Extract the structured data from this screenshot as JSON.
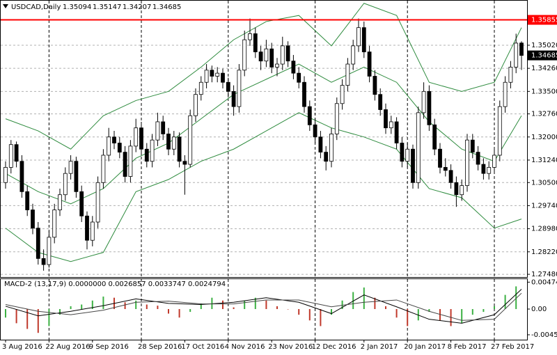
{
  "chart_data": {
    "type": "candlestick",
    "title": "USDCAD,Daily",
    "macd_title": "MACD-2 (13,17,9) 0.0000000 0.0026857 0.0033747 0.0024794",
    "categories": [
      "3 Aug 2016",
      null,
      null,
      null,
      null,
      null,
      null,
      null,
      "22 Aug 2016",
      null,
      null,
      null,
      null,
      null,
      null,
      null,
      "9 Sep 2016",
      null,
      null,
      null,
      null,
      null,
      null,
      null,
      null,
      "28 Sep 2016",
      null,
      null,
      null,
      null,
      null,
      null,
      null,
      "17 Oct 2016",
      null,
      null,
      null,
      null,
      null,
      null,
      null,
      "4 Nov 2016",
      null,
      null,
      null,
      null,
      null,
      null,
      null,
      "23 Nov 2016",
      null,
      null,
      null,
      null,
      null,
      null,
      null,
      "12 Dec 2016",
      null,
      null,
      null,
      null,
      null,
      null,
      null,
      null,
      "2 Jan 2017",
      null,
      null,
      null,
      null,
      null,
      null,
      null,
      "20 Jan 2017",
      null,
      null,
      null,
      null,
      null,
      null,
      null,
      "8 Feb 2017",
      null,
      null,
      null,
      null,
      null,
      null,
      null,
      "27 Feb 2017",
      null,
      null,
      null,
      null,
      null
    ],
    "open": [
      1.305,
      1.31,
      1.3175,
      1.312,
      1.302,
      1.296,
      1.29,
      1.28,
      1.278,
      1.287,
      1.296,
      1.301,
      1.308,
      1.312,
      1.302,
      1.294,
      1.286,
      1.292,
      1.305,
      1.314,
      1.32,
      1.318,
      1.315,
      1.307,
      1.317,
      1.323,
      1.316,
      1.312,
      1.319,
      1.325,
      1.321,
      1.316,
      1.32,
      1.312,
      1.311,
      1.327,
      1.334,
      1.338,
      1.342,
      1.34,
      1.341,
      1.338,
      1.335,
      1.33,
      1.342,
      1.352,
      1.354,
      1.348,
      1.345,
      1.349,
      1.343,
      1.344,
      1.35,
      1.345,
      1.341,
      1.338,
      1.33,
      1.324,
      1.32,
      1.315,
      1.312,
      1.321,
      1.331,
      1.337,
      1.344,
      1.35,
      1.356,
      1.348,
      1.34,
      1.334,
      1.329,
      1.323,
      1.325,
      1.318,
      1.312,
      1.316,
      1.305,
      1.328,
      1.335,
      1.324,
      1.316,
      1.31,
      1.309,
      1.305,
      1.301,
      1.304,
      1.319,
      1.315,
      1.311,
      1.308,
      1.31,
      1.314,
      1.33,
      1.338,
      1.343,
      1.35094
    ],
    "high": [
      1.312,
      1.319,
      1.3185,
      1.314,
      1.304,
      1.298,
      1.292,
      1.283,
      1.289,
      1.298,
      1.303,
      1.31,
      1.314,
      1.3135,
      1.304,
      1.2955,
      1.294,
      1.307,
      1.316,
      1.323,
      1.322,
      1.32,
      1.317,
      1.319,
      1.326,
      1.325,
      1.318,
      1.321,
      1.328,
      1.327,
      1.323,
      1.322,
      1.3215,
      1.314,
      1.329,
      1.336,
      1.34,
      1.344,
      1.3435,
      1.343,
      1.3425,
      1.3395,
      1.337,
      1.344,
      1.355,
      1.359,
      1.356,
      1.35,
      1.352,
      1.351,
      1.346,
      1.353,
      1.3515,
      1.347,
      1.343,
      1.34,
      1.332,
      1.326,
      1.322,
      1.317,
      1.323,
      1.333,
      1.339,
      1.346,
      1.352,
      1.359,
      1.358,
      1.35,
      1.342,
      1.336,
      1.331,
      1.327,
      1.3265,
      1.32,
      1.318,
      1.3175,
      1.33,
      1.338,
      1.337,
      1.326,
      1.318,
      1.313,
      1.311,
      1.307,
      1.306,
      1.321,
      1.321,
      1.317,
      1.313,
      1.312,
      1.316,
      1.332,
      1.34,
      1.345,
      1.354,
      1.35147
    ],
    "low": [
      1.303,
      1.308,
      1.31,
      1.3,
      1.294,
      1.288,
      1.278,
      1.276,
      1.277,
      1.285,
      1.294,
      1.299,
      1.306,
      1.3,
      1.292,
      1.283,
      1.284,
      1.29,
      1.303,
      1.312,
      1.316,
      1.313,
      1.305,
      1.305,
      1.315,
      1.314,
      1.31,
      1.31,
      1.317,
      1.319,
      1.314,
      1.314,
      1.31,
      1.301,
      1.31,
      1.325,
      1.332,
      1.336,
      1.338,
      1.338,
      1.336,
      1.333,
      1.327,
      1.328,
      1.34,
      1.35,
      1.346,
      1.342,
      1.343,
      1.341,
      1.34,
      1.342,
      1.343,
      1.339,
      1.336,
      1.328,
      1.322,
      1.318,
      1.313,
      1.309,
      1.31,
      1.319,
      1.329,
      1.335,
      1.342,
      1.348,
      1.346,
      1.338,
      1.332,
      1.327,
      1.321,
      1.321,
      1.316,
      1.31,
      1.31,
      1.303,
      1.303,
      1.326,
      1.322,
      1.314,
      1.308,
      1.307,
      1.303,
      1.297,
      1.299,
      1.302,
      1.313,
      1.309,
      1.306,
      1.306,
      1.308,
      1.312,
      1.328,
      1.336,
      1.341,
      1.34207
    ],
    "close": [
      1.31,
      1.3175,
      1.312,
      1.302,
      1.296,
      1.29,
      1.28,
      1.278,
      1.287,
      1.296,
      1.301,
      1.308,
      1.312,
      1.302,
      1.294,
      1.286,
      1.292,
      1.305,
      1.314,
      1.32,
      1.318,
      1.315,
      1.307,
      1.317,
      1.323,
      1.316,
      1.312,
      1.319,
      1.325,
      1.321,
      1.316,
      1.32,
      1.312,
      1.311,
      1.327,
      1.334,
      1.338,
      1.342,
      1.34,
      1.341,
      1.338,
      1.335,
      1.33,
      1.342,
      1.352,
      1.354,
      1.348,
      1.345,
      1.349,
      1.343,
      1.344,
      1.35,
      1.345,
      1.341,
      1.338,
      1.33,
      1.324,
      1.32,
      1.315,
      1.312,
      1.321,
      1.331,
      1.337,
      1.344,
      1.35,
      1.356,
      1.348,
      1.34,
      1.334,
      1.329,
      1.323,
      1.325,
      1.318,
      1.312,
      1.316,
      1.305,
      1.328,
      1.335,
      1.324,
      1.316,
      1.31,
      1.309,
      1.305,
      1.301,
      1.304,
      1.319,
      1.315,
      1.311,
      1.308,
      1.31,
      1.314,
      1.33,
      1.338,
      1.343,
      1.3509,
      1.34685
    ],
    "up_color": "#ffffff",
    "down_color": "#000000",
    "candle_outline": "#000000",
    "ylim": [
      1.2739,
      1.3644
    ],
    "yticks": [
      {
        "value": 1.3502,
        "label": "1.35020"
      },
      {
        "value": 1.3426,
        "label": "1.34260"
      },
      {
        "value": 1.335,
        "label": "1.33500"
      },
      {
        "value": 1.3276,
        "label": "1.32760"
      },
      {
        "value": 1.32,
        "label": "1.32000"
      },
      {
        "value": 1.3124,
        "label": "1.31240"
      },
      {
        "value": 1.305,
        "label": "1.30500"
      },
      {
        "value": 1.2974,
        "label": "1.29740"
      },
      {
        "value": 1.2898,
        "label": "1.28980"
      },
      {
        "value": 1.2822,
        "label": "1.28220"
      },
      {
        "value": 1.2748,
        "label": "1.27480"
      }
    ],
    "grid": true,
    "hline": {
      "value": 1.35855,
      "label": "1.35855",
      "color": "#ff0000"
    },
    "bands": {
      "color": "#2e8b3e",
      "x": [
        0,
        6,
        12,
        18,
        24,
        30,
        36,
        42,
        48,
        54,
        60,
        66,
        72,
        78,
        84,
        90,
        95
      ],
      "series": [
        {
          "values": [
            1.326,
            1.322,
            1.316,
            1.327,
            1.332,
            1.335,
            1.343,
            1.352,
            1.358,
            1.36,
            1.35,
            1.364,
            1.36,
            1.338,
            1.335,
            1.338,
            1.356
          ]
        },
        {
          "values": [
            1.308,
            1.302,
            1.298,
            1.303,
            1.313,
            1.318,
            1.326,
            1.334,
            1.339,
            1.344,
            1.338,
            1.343,
            1.338,
            1.325,
            1.316,
            1.312,
            1.327
          ]
        },
        {
          "values": [
            1.29,
            1.282,
            1.279,
            1.282,
            1.302,
            1.306,
            1.312,
            1.316,
            1.322,
            1.328,
            1.323,
            1.32,
            1.316,
            1.303,
            1.3,
            1.29,
            1.293
          ]
        }
      ]
    },
    "macd": {
      "ylim": [
        -0.0054,
        0.0054
      ],
      "yticks": [
        0.004744,
        {
          "value": 0,
          "label": "0.00"
        },
        -0.004535
      ],
      "hist_x": [
        0,
        2,
        4,
        6,
        8,
        10,
        12,
        14,
        16,
        18,
        20,
        22,
        24,
        26,
        28,
        30,
        32,
        34,
        36,
        38,
        40,
        42,
        44,
        46,
        48,
        50,
        52,
        54,
        56,
        58,
        60,
        62,
        64,
        66,
        68,
        70,
        72,
        74,
        76,
        78,
        80,
        82,
        84,
        86,
        88,
        90,
        92,
        94
      ],
      "hist": [
        -0.0015,
        -0.0025,
        -0.0035,
        -0.0042,
        -0.003,
        -0.001,
        0.0005,
        0.0008,
        0.0015,
        0.0022,
        0.002,
        0.0012,
        0.0015,
        0.0008,
        0.0006,
        -0.0008,
        -0.0015,
        -0.0005,
        0.001,
        0.002,
        0.0015,
        0.0003,
        0.0015,
        0.002,
        0.0015,
        0.0005,
        0,
        -0.001,
        -0.002,
        -0.003,
        -0.001,
        0.0015,
        0.003,
        0.0038,
        0.002,
        0.0005,
        -0.0015,
        -0.003,
        -0.002,
        -0.0005,
        -0.002,
        -0.003,
        -0.0025,
        -0.001,
        -0.0005,
        0.0005,
        0.0025,
        0.004
      ],
      "rise_color": "#3cb043",
      "fall_color": "#c0392b",
      "line_x": [
        0,
        6,
        12,
        18,
        24,
        30,
        36,
        42,
        48,
        54,
        60,
        66,
        72,
        78,
        84,
        90,
        95
      ],
      "series": [
        {
          "color": "#000000",
          "values": [
            0.0005,
            -0.0012,
            -0.0004,
            0.0006,
            0.0018,
            0.001,
            0.0008,
            0.0012,
            0.002,
            0.0012,
            -0.0008,
            0.0025,
            0.0004,
            -0.0018,
            -0.0025,
            -0.001,
            0.0035
          ]
        },
        {
          "color": "#444444",
          "values": [
            0.0008,
            -0.0004,
            -0.001,
            -0.0002,
            0.0012,
            0.0014,
            0.0009,
            0.0009,
            0.0016,
            0.0016,
            0.0004,
            0.0012,
            0.0016,
            -0.0004,
            -0.002,
            -0.0018,
            0.0028
          ]
        }
      ]
    }
  }
}
